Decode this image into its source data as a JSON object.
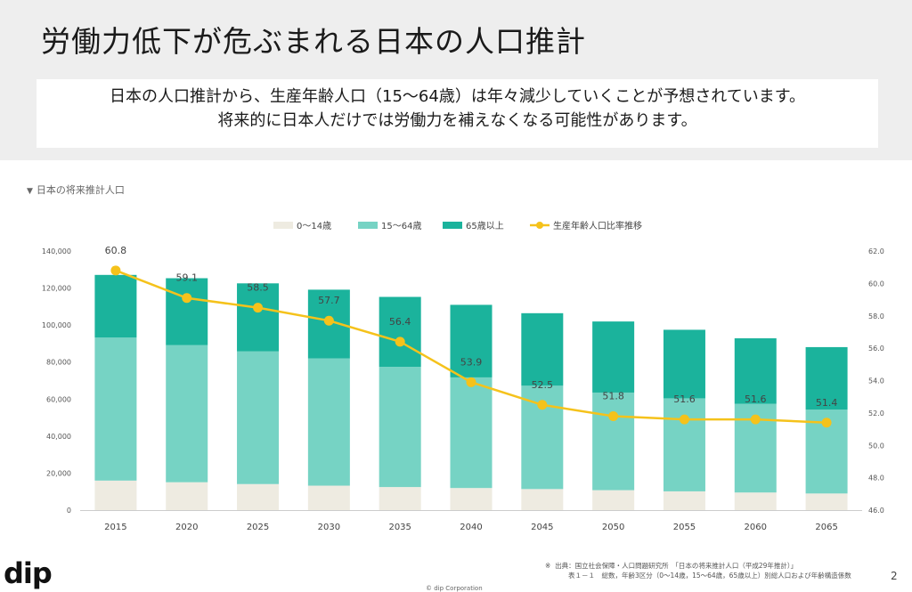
{
  "slide": {
    "title": "労働力低下が危ぶまれる日本の人口推計",
    "description_line1": "日本の人口推計から、生産年齢人口（15〜64歳）は年々減少していくことが予想されています。",
    "description_line2": "将来的に日本人だけでは労働力を補えなくなる可能性があります。",
    "chart_caption": "日本の将来推計人口",
    "chart_caption_icon": "▼",
    "logo": "dip",
    "source_mark": "※",
    "source_line1": "出典：国立社会保障・人口問題研究所　「日本の将来推計人口（平成29年推計）」",
    "source_line2": "表１－１　総数，年齢3区分（0〜14歳，15〜64歳，65歳以上）別総人口および年齢構造係数",
    "copyright": "© dip Corporation",
    "page_number": "2"
  },
  "colors": {
    "age_0_14": "#eeebe1",
    "age_15_64": "#76d3c4",
    "age_65_plus": "#1bb39c",
    "ratio_line": "#f5c21b"
  },
  "chart_data": {
    "type": "bar",
    "stacked": true,
    "title": "",
    "categories": [
      "2015",
      "2020",
      "2025",
      "2030",
      "2035",
      "2040",
      "2045",
      "2050",
      "2055",
      "2060",
      "2065"
    ],
    "series": [
      {
        "name": "0〜14歳",
        "values": [
          15950,
          15070,
          14070,
          13210,
          12460,
          11940,
          11380,
          10770,
          10130,
          9510,
          8980
        ],
        "axis": "left"
      },
      {
        "name": "15〜64歳",
        "values": [
          77280,
          74060,
          71700,
          68750,
          64940,
          59780,
          55840,
          52750,
          50280,
          47930,
          45290
        ],
        "axis": "left"
      },
      {
        "name": "65歳以上",
        "values": [
          33870,
          36190,
          36770,
          37160,
          37820,
          39210,
          39190,
          38410,
          37040,
          35400,
          33810
        ],
        "axis": "left"
      }
    ],
    "line_series": {
      "name": "生産年齢人口比率推移",
      "values": [
        60.8,
        59.1,
        58.5,
        57.7,
        56.4,
        53.9,
        52.5,
        51.8,
        51.6,
        51.6,
        51.4
      ],
      "labels": [
        "60.8",
        "59.1",
        "58.5",
        "57.7",
        "56.4",
        "53.9",
        "52.5",
        "51.8",
        "51.6",
        "51.6",
        "51.4"
      ],
      "axis": "right"
    },
    "y_left": {
      "min": 0,
      "max": 140000,
      "ticks": [
        "0",
        "20,000",
        "40,000",
        "60,000",
        "80,000",
        "100,000",
        "120,000",
        "140,000"
      ]
    },
    "y_right": {
      "min": 46,
      "max": 62,
      "ticks": [
        "46.0",
        "48.0",
        "50.0",
        "52.0",
        "54.0",
        "56.0",
        "58.0",
        "60.0",
        "62.0"
      ]
    },
    "legend_position": "top-center",
    "grid": false
  }
}
